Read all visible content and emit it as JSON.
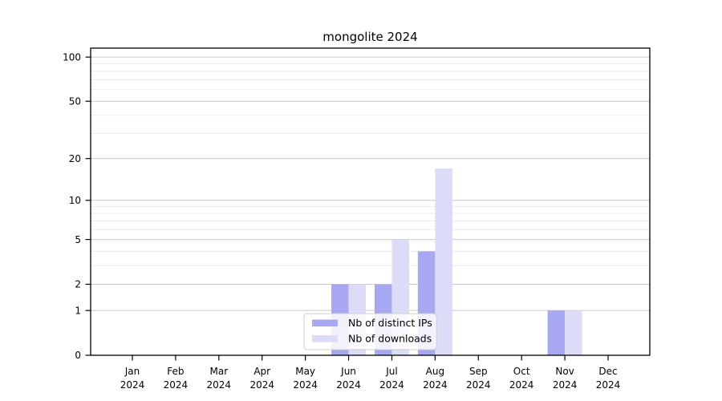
{
  "chart_data": {
    "type": "bar",
    "title": "mongolite 2024",
    "categories": [
      "Jan",
      "Feb",
      "Mar",
      "Apr",
      "May",
      "Jun",
      "Jul",
      "Aug",
      "Sep",
      "Oct",
      "Nov",
      "Dec"
    ],
    "category_year": "2024",
    "series": [
      {
        "name": "Nb of distinct IPs",
        "color": "#a8a8f2",
        "values": [
          0,
          0,
          0,
          0,
          0,
          2,
          2,
          4,
          0,
          0,
          1,
          0
        ]
      },
      {
        "name": "Nb of downloads",
        "color": "#dcdcf8",
        "values": [
          0,
          0,
          0,
          0,
          0,
          2,
          5,
          17,
          0,
          0,
          1,
          0
        ]
      }
    ],
    "xlabel": "",
    "ylabel": "",
    "y_axis": {
      "scale": "log1p",
      "major_ticks": [
        0,
        1,
        2,
        5,
        10,
        20,
        50,
        100
      ],
      "minor_ticks": [
        3,
        4,
        6,
        7,
        8,
        9,
        30,
        40,
        60,
        70,
        80,
        90
      ],
      "ylim": [
        0,
        115
      ]
    },
    "grid": true,
    "legend_position": "lower center",
    "colors": {
      "major_grid": "#c9c9c9",
      "minor_grid": "#ececec",
      "axis": "#000000",
      "legend_border": "#cccccc",
      "legend_background": "#ffffff"
    }
  }
}
